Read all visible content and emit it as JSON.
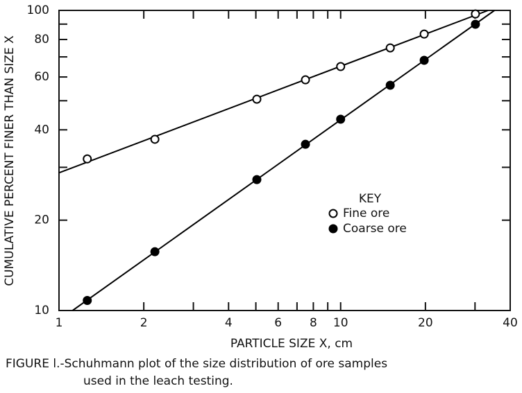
{
  "chart_data": {
    "type": "scatter",
    "y_label": "CUMULATIVE PERCENT FINER THAN SIZE X",
    "x_label": "PARTICLE SIZE X, cm",
    "caption": [
      "FIGURE l.-Schuhmann plot of the size distribution of ore samples",
      "used in the leach testing."
    ],
    "legend_title": "KEY",
    "x_log": true,
    "y_log": true,
    "trend_lines": true,
    "xlim": [
      1,
      40
    ],
    "xticks": [
      1,
      2,
      4,
      6,
      8,
      10,
      20,
      40
    ],
    "xminorticks": [
      3,
      5,
      7,
      9,
      30
    ],
    "ylim": [
      10,
      100
    ],
    "yticks": [
      10,
      20,
      40,
      60,
      80,
      100
    ],
    "yminorticks": [
      30,
      50,
      70,
      90
    ],
    "series": [
      {
        "name": "Fine ore",
        "color": "#000000",
        "fill": "#ffffff",
        "x": [
          1.26,
          2.19,
          5.04,
          7.5,
          10,
          15,
          19.8,
          30.1
        ],
        "values": [
          32,
          37.2,
          50.6,
          58.7,
          65,
          75,
          83.4,
          97.3
        ]
      },
      {
        "name": "Coarse ore",
        "color": "#000000",
        "fill": "#000000",
        "x": [
          1.26,
          2.19,
          5.04,
          7.5,
          10,
          15,
          19.8,
          30.1
        ],
        "values": [
          10.8,
          15.7,
          27.3,
          35.8,
          43.4,
          56.3,
          68.2,
          89.9
        ]
      }
    ]
  }
}
